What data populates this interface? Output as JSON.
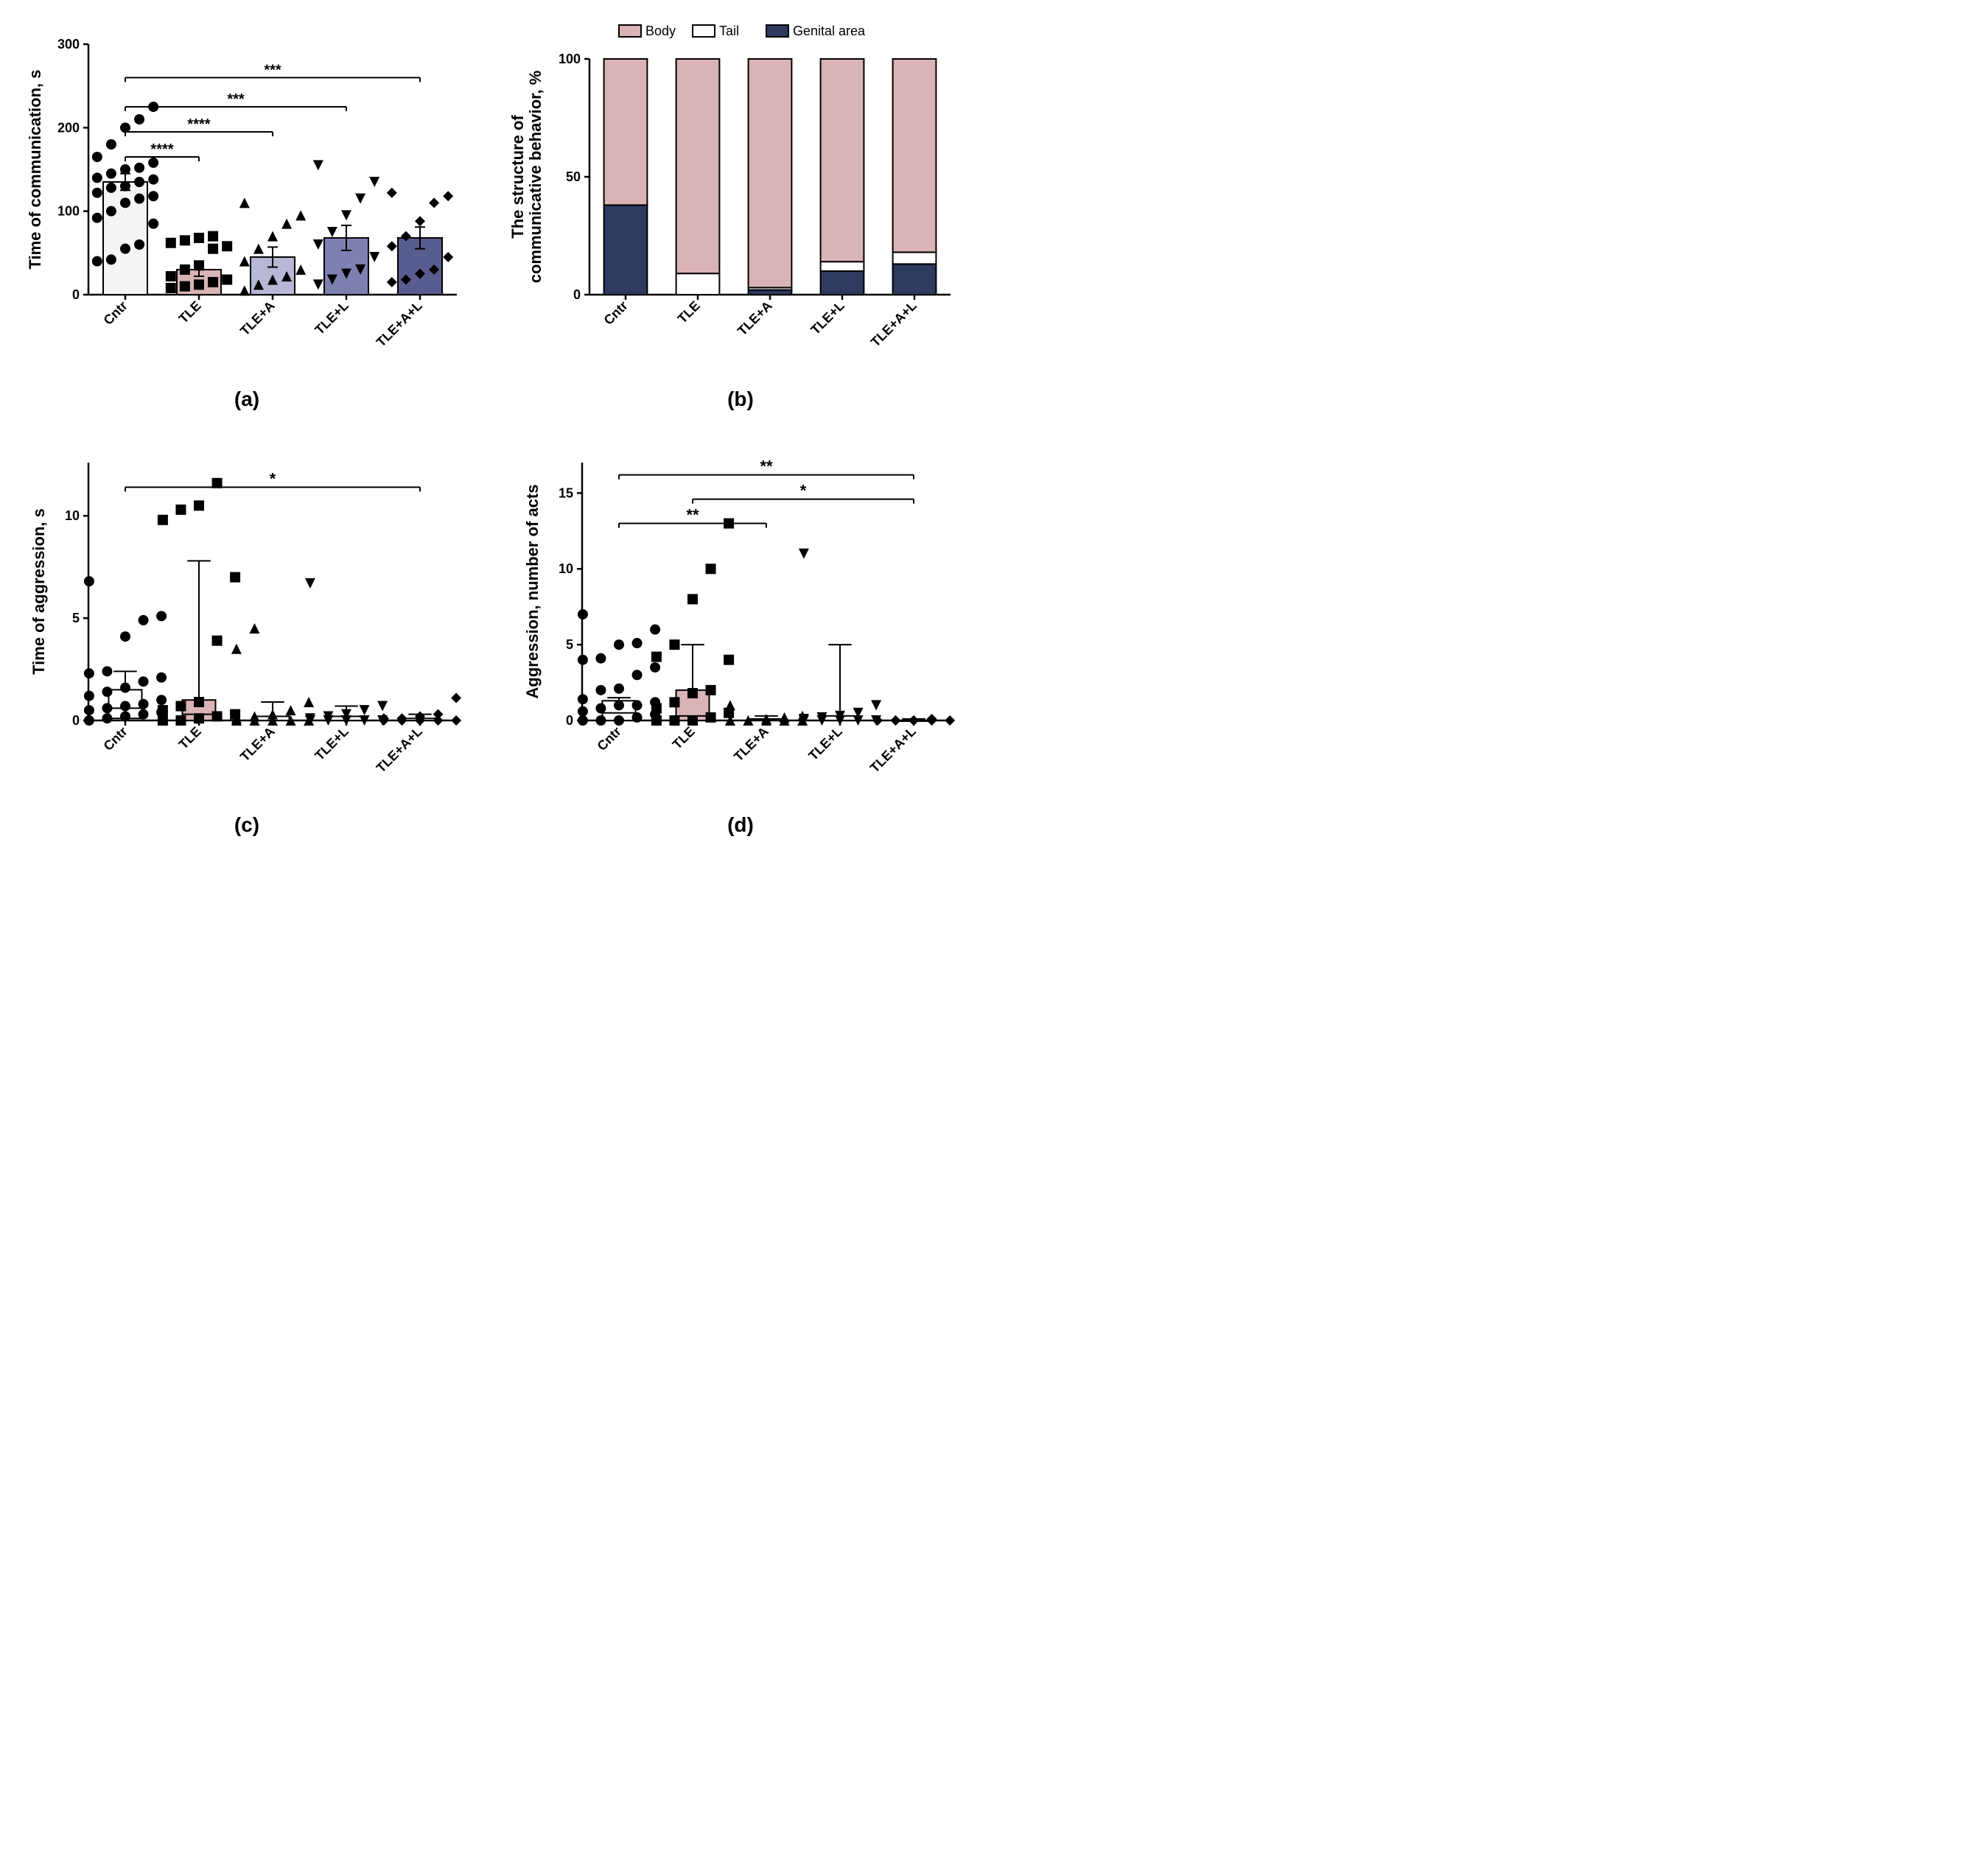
{
  "panel_a": {
    "label": "(a)",
    "type": "bar_scatter",
    "ylabel": "Time of communication, s",
    "label_fontsize": 22,
    "label_fontweight": "bold",
    "ylim": [
      0,
      300
    ],
    "yticks": [
      0,
      100,
      200,
      300
    ],
    "categories": [
      "Cntr",
      "TLE",
      "TLE+A",
      "TLE+L",
      "TLE+A+L"
    ],
    "bar_values": [
      135,
      30,
      45,
      68,
      68
    ],
    "bar_err": [
      10,
      8,
      12,
      15,
      13
    ],
    "bar_colors": [
      "#f5f5f5",
      "#d9b3b5",
      "#b6b8d6",
      "#7e81b0",
      "#595c8e"
    ],
    "bar_border": "#000000",
    "bar_width": 0.6,
    "markers": [
      "circle",
      "square",
      "triangle",
      "invtriangle",
      "diamond"
    ],
    "marker_color": "#000000",
    "marker_size": 7,
    "scatter": [
      [
        40,
        42,
        55,
        60,
        85,
        92,
        100,
        110,
        115,
        118,
        122,
        128,
        130,
        135,
        138,
        140,
        145,
        150,
        152,
        158,
        165,
        180,
        200,
        210,
        225
      ],
      [
        8,
        10,
        12,
        15,
        18,
        22,
        30,
        35,
        55,
        58,
        62,
        65,
        68,
        70
      ],
      [
        5,
        12,
        18,
        22,
        30,
        40,
        55,
        70,
        85,
        95,
        110
      ],
      [
        12,
        18,
        25,
        30,
        45,
        60,
        75,
        95,
        115,
        135,
        155
      ],
      [
        15,
        18,
        25,
        30,
        45,
        58,
        70,
        88,
        110,
        118,
        122
      ]
    ],
    "sig_bars": [
      {
        "from": 0,
        "to": 1,
        "y": 165,
        "label": "****"
      },
      {
        "from": 0,
        "to": 2,
        "y": 195,
        "label": "****"
      },
      {
        "from": 0,
        "to": 3,
        "y": 225,
        "label": "***"
      },
      {
        "from": 0,
        "to": 4,
        "y": 260,
        "label": "***"
      }
    ],
    "sig_fontsize": 20,
    "axis_color": "#000000",
    "tick_fontsize": 18
  },
  "panel_b": {
    "label": "(b)",
    "type": "stacked_bar",
    "ylabel": "The structure of communicative behavior, %",
    "label_fontsize": 22,
    "label_fontweight": "bold",
    "ylim": [
      0,
      100
    ],
    "yticks": [
      0,
      50,
      100
    ],
    "categories": [
      "Cntr",
      "TLE",
      "TLE+A",
      "TLE+L",
      "TLE+A+L"
    ],
    "legend": [
      {
        "label": "Body",
        "color": "#d9b3b5"
      },
      {
        "label": "Tail",
        "color": "#ffffff"
      },
      {
        "label": "Genital area",
        "color": "#2e3a5e"
      }
    ],
    "stacks": [
      {
        "genital": 38,
        "tail": 0,
        "body": 62
      },
      {
        "genital": 0,
        "tail": 9,
        "body": 91
      },
      {
        "genital": 2,
        "tail": 1,
        "body": 97
      },
      {
        "genital": 10,
        "tail": 4,
        "body": 86
      },
      {
        "genital": 13,
        "tail": 5,
        "body": 82
      }
    ],
    "colors": {
      "body": "#d9b3b5",
      "tail": "#ffffff",
      "genital": "#2e3a5e"
    },
    "bar_border": "#000000",
    "bar_width": 0.6,
    "axis_color": "#000000",
    "tick_fontsize": 18,
    "legend_fontsize": 18
  },
  "panel_c": {
    "label": "(c)",
    "type": "box_scatter",
    "ylabel": "Time of aggression, s",
    "label_fontsize": 22,
    "label_fontweight": "bold",
    "ylim": [
      0,
      12
    ],
    "yticks": [
      0,
      5,
      10
    ],
    "categories": [
      "Cntr",
      "TLE",
      "TLE+A",
      "TLE+L",
      "TLE+A+L"
    ],
    "boxes": [
      {
        "q1": 0.1,
        "med": 0.6,
        "q3": 1.5,
        "whisker_low": 0,
        "whisker_high": 2.4,
        "fill": "#ffffff"
      },
      {
        "q1": 0,
        "med": 0.3,
        "q3": 1.0,
        "whisker_low": 0,
        "whisker_high": 7.8,
        "fill": "#d9b3b5"
      },
      {
        "q1": 0,
        "med": 0,
        "q3": 0.2,
        "whisker_low": 0,
        "whisker_high": 0.9,
        "fill": "#ffffff"
      },
      {
        "q1": 0,
        "med": 0,
        "q3": 0.2,
        "whisker_low": 0,
        "whisker_high": 0.7,
        "fill": "#ffffff"
      },
      {
        "q1": 0,
        "med": 0,
        "q3": 0.1,
        "whisker_low": 0,
        "whisker_high": 0.3,
        "fill": "#ffffff"
      }
    ],
    "box_border": "#000000",
    "box_width": 0.45,
    "markers": [
      "circle",
      "square",
      "triangle",
      "invtriangle",
      "diamond"
    ],
    "marker_color": "#000000",
    "marker_size": 7,
    "scatter": [
      [
        0,
        0.1,
        0.2,
        0.3,
        0.4,
        0.5,
        0.6,
        0.7,
        0.8,
        1.0,
        1.2,
        1.4,
        1.6,
        1.9,
        2.1,
        2.3,
        2.4,
        4.1,
        4.9,
        5.1,
        6.8
      ],
      [
        0,
        0,
        0.1,
        0.2,
        0.3,
        0.5,
        0.7,
        0.9,
        3.9,
        7.0,
        9.8,
        10.3,
        10.5,
        11.6
      ],
      [
        0,
        0,
        0,
        0,
        0,
        0.1,
        0.2,
        0.3,
        0.5,
        0.9,
        3.5,
        4.5
      ],
      [
        0,
        0,
        0,
        0,
        0,
        0.1,
        0.2,
        0.3,
        0.5,
        0.7,
        6.7
      ],
      [
        0,
        0,
        0,
        0,
        0,
        0.1,
        0.1,
        0.2,
        0.3,
        1.1
      ]
    ],
    "sig_bars": [
      {
        "from": 0,
        "to": 4,
        "y": 11.4,
        "label": "*"
      }
    ],
    "sig_fontsize": 22,
    "axis_color": "#000000",
    "tick_fontsize": 18
  },
  "panel_d": {
    "label": "(d)",
    "type": "box_scatter",
    "ylabel": "Aggression, number of acts",
    "label_fontsize": 22,
    "label_fontweight": "bold",
    "ylim": [
      0,
      16
    ],
    "yticks": [
      0,
      5,
      10,
      15
    ],
    "categories": [
      "Cntr",
      "TLE",
      "TLE+A",
      "TLE+L",
      "TLE+A+L"
    ],
    "boxes": [
      {
        "q1": 0,
        "med": 0.5,
        "q3": 1.3,
        "whisker_low": 0,
        "whisker_high": 1.5,
        "fill": "#ffffff"
      },
      {
        "q1": 0,
        "med": 0.3,
        "q3": 2.0,
        "whisker_low": 0,
        "whisker_high": 5.0,
        "fill": "#d9b3b5"
      },
      {
        "q1": 0,
        "med": 0,
        "q3": 0.1,
        "whisker_low": 0,
        "whisker_high": 0.3,
        "fill": "#ffffff"
      },
      {
        "q1": 0,
        "med": 0,
        "q3": 0.3,
        "whisker_low": 0,
        "whisker_high": 5.0,
        "fill": "#ffffff"
      },
      {
        "q1": 0,
        "med": 0,
        "q3": 0,
        "whisker_low": 0,
        "whisker_high": 0.1,
        "fill": "#ffffff"
      }
    ],
    "box_border": "#000000",
    "box_width": 0.45,
    "markers": [
      "circle",
      "square",
      "triangle",
      "invtriangle",
      "diamond"
    ],
    "marker_color": "#000000",
    "marker_size": 7,
    "scatter": [
      [
        0,
        0,
        0,
        0.2,
        0.4,
        0.6,
        0.8,
        1.0,
        1.0,
        1.2,
        1.4,
        2.0,
        2.1,
        3.0,
        3.5,
        4.0,
        4.1,
        5.0,
        5.1,
        6.0,
        7.0
      ],
      [
        0,
        0,
        0,
        0.2,
        0.5,
        0.8,
        1.2,
        1.8,
        2.0,
        4.0,
        4.2,
        5.0,
        8.0,
        10.0,
        13.0
      ],
      [
        0,
        0,
        0,
        0,
        0,
        0,
        0,
        0.1,
        0.2,
        0.3,
        1.0
      ],
      [
        0,
        0,
        0,
        0,
        0,
        0.1,
        0.2,
        0.3,
        0.5,
        1.0,
        11.0
      ],
      [
        0,
        0,
        0,
        0,
        0,
        0,
        0,
        0,
        0.1
      ]
    ],
    "sig_bars": [
      {
        "from": 0,
        "to": 2,
        "y": 13.0,
        "label": "**"
      },
      {
        "from": 1,
        "to": 4,
        "y": 14.6,
        "label": "*"
      },
      {
        "from": 0,
        "to": 4,
        "y": 16.2,
        "label": "**"
      }
    ],
    "sig_fontsize": 22,
    "axis_color": "#000000",
    "tick_fontsize": 18
  }
}
